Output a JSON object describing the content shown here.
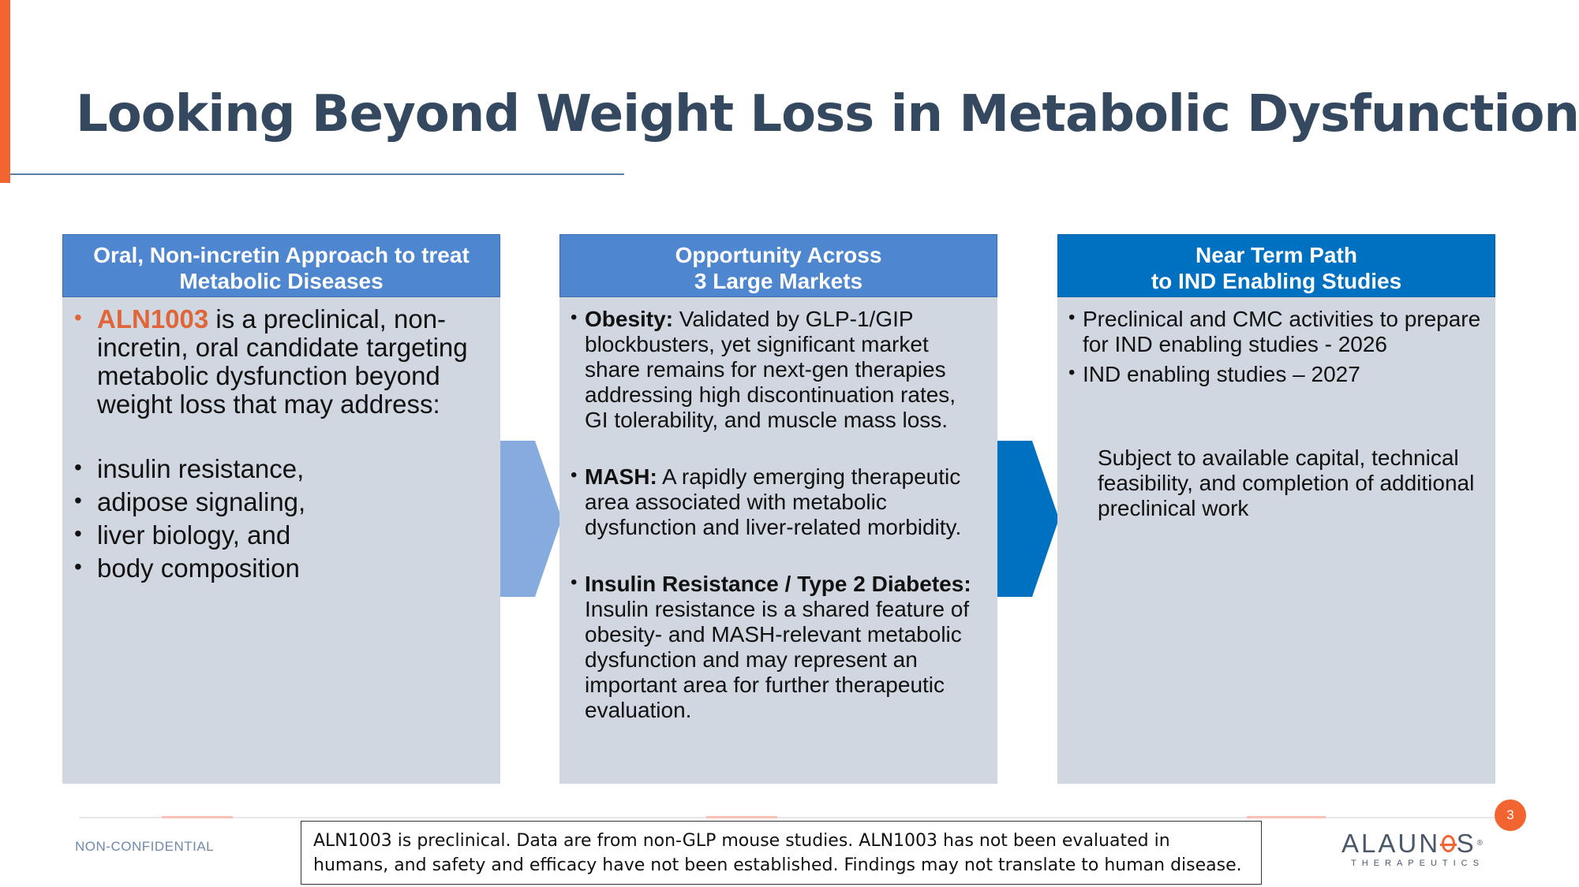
{
  "slide": {
    "title": "Looking Beyond Weight Loss in Metabolic Dysfunction",
    "colors": {
      "accent": "#f26430",
      "title": "#34485f",
      "header_mid": "#4f86d0",
      "header_dark": "#0070c0",
      "panel": "#d0d7e0",
      "chevron_light": "#86acdf",
      "chevron_dark": "#0070c0"
    }
  },
  "columns": [
    {
      "header": [
        "Oral, Non-incretin Approach to treat",
        "Metabolic Diseases"
      ],
      "intro_highlight": "ALN1003",
      "intro_text": " is a preclinical, non-incretin, oral candidate targeting metabolic dysfunction beyond weight loss that may address:",
      "items": [
        "insulin resistance,",
        "adipose signaling,",
        "liver biology, and",
        "body composition"
      ]
    },
    {
      "header": [
        "Opportunity Across",
        "3 Large Markets"
      ],
      "items": [
        {
          "term": "Obesity:",
          "text": " Validated by GLP-1/GIP blockbusters, yet significant market share remains for next-gen therapies addressing high discontinuation rates, GI tolerability, and muscle mass loss."
        },
        {
          "term": "MASH:",
          "text": " A rapidly emerging therapeutic area associated with metabolic dysfunction and liver-related morbidity."
        },
        {
          "term": "Insulin Resistance / Type 2 Diabetes:",
          "text": " Insulin resistance is a shared feature of obesity- and MASH-relevant metabolic dysfunction and may represent an important area for further therapeutic evaluation."
        }
      ]
    },
    {
      "header": [
        "Near Term Path",
        "to IND Enabling Studies"
      ],
      "items": [
        "Preclinical and CMC activities to prepare for IND enabling studies - 2026",
        "IND enabling studies – 2027"
      ],
      "note": "Subject to available capital, technical feasibility, and completion of additional preclinical work"
    }
  ],
  "footer": {
    "classification": "NON-CONFIDENTIAL",
    "page_number": "3",
    "disclaimer": "ALN1003 is preclinical. Data are from non-GLP mouse studies. ALN1003 has not been evaluated in humans, and safety and efficacy have not been established. Findings may not translate to human disease.",
    "logo_word_start": "ALAUN",
    "logo_word_end": "S",
    "logo_tm": "®",
    "logo_sub": "THERAPEUTICS"
  }
}
